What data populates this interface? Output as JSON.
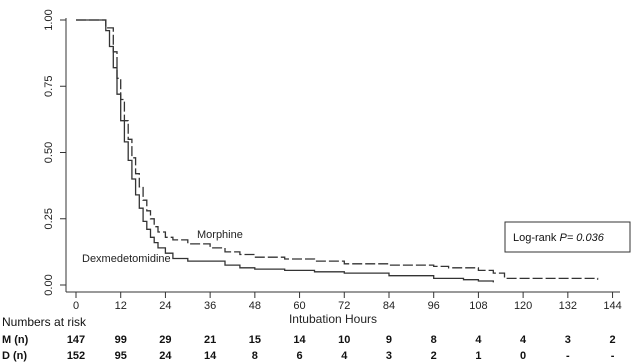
{
  "chart_data": {
    "type": "line",
    "xlabel": "Intubation Hours",
    "ylabel": "",
    "xlim": [
      0,
      146
    ],
    "ylim": [
      0,
      1
    ],
    "x_ticks": [
      "0",
      "12",
      "24",
      "36",
      "48",
      "60",
      "72",
      "84",
      "96",
      "108",
      "120",
      "132",
      "144"
    ],
    "y_ticks": [
      "0.00",
      "0.25",
      "0.50",
      "0.75",
      "1.00"
    ],
    "series": [
      {
        "name": "Morphine",
        "style": "dashed",
        "color": "#333333",
        "points": [
          [
            0,
            1.0
          ],
          [
            6,
            1.0
          ],
          [
            8,
            0.97
          ],
          [
            10,
            0.88
          ],
          [
            11,
            0.78
          ],
          [
            12,
            0.7
          ],
          [
            13,
            0.62
          ],
          [
            14,
            0.55
          ],
          [
            15,
            0.48
          ],
          [
            16,
            0.42
          ],
          [
            17,
            0.37
          ],
          [
            18,
            0.32
          ],
          [
            19,
            0.28
          ],
          [
            20,
            0.25
          ],
          [
            21,
            0.22
          ],
          [
            22,
            0.2
          ],
          [
            24,
            0.18
          ],
          [
            26,
            0.17
          ],
          [
            30,
            0.155
          ],
          [
            36,
            0.14
          ],
          [
            40,
            0.125
          ],
          [
            44,
            0.115
          ],
          [
            48,
            0.105
          ],
          [
            56,
            0.098
          ],
          [
            64,
            0.09
          ],
          [
            72,
            0.08
          ],
          [
            84,
            0.075
          ],
          [
            96,
            0.07
          ],
          [
            100,
            0.065
          ],
          [
            108,
            0.055
          ],
          [
            112,
            0.045
          ],
          [
            115,
            0.025
          ],
          [
            140,
            0.02
          ]
        ]
      },
      {
        "name": "Dexmedetomidine",
        "style": "solid",
        "color": "#333333",
        "points": [
          [
            0,
            1.0
          ],
          [
            6,
            1.0
          ],
          [
            8,
            0.96
          ],
          [
            9,
            0.9
          ],
          [
            10,
            0.82
          ],
          [
            11,
            0.72
          ],
          [
            12,
            0.62
          ],
          [
            13,
            0.54
          ],
          [
            14,
            0.47
          ],
          [
            15,
            0.4
          ],
          [
            16,
            0.34
          ],
          [
            17,
            0.29
          ],
          [
            18,
            0.24
          ],
          [
            19,
            0.21
          ],
          [
            20,
            0.18
          ],
          [
            21,
            0.16
          ],
          [
            22,
            0.14
          ],
          [
            24,
            0.12
          ],
          [
            26,
            0.1
          ],
          [
            30,
            0.09
          ],
          [
            36,
            0.09
          ],
          [
            40,
            0.075
          ],
          [
            44,
            0.065
          ],
          [
            48,
            0.06
          ],
          [
            56,
            0.055
          ],
          [
            64,
            0.05
          ],
          [
            72,
            0.045
          ],
          [
            84,
            0.035
          ],
          [
            96,
            0.025
          ],
          [
            104,
            0.02
          ],
          [
            108,
            0.015
          ],
          [
            112,
            0.01
          ]
        ]
      }
    ],
    "annotations": {
      "morphine_label": "Morphine",
      "dex_label": "Dexmedetomidine",
      "logrank_prefix": "Log-rank ",
      "logrank_p": "P",
      "logrank_suffix": "= 0.036"
    },
    "risk_table": {
      "header": "Numbers at risk",
      "rows": [
        {
          "label": "M (n)",
          "values": [
            "147",
            "99",
            "29",
            "21",
            "15",
            "14",
            "10",
            "9",
            "8",
            "4",
            "4",
            "3",
            "2"
          ]
        },
        {
          "label": "D (n)",
          "values": [
            "152",
            "95",
            "24",
            "14",
            "8",
            "6",
            "4",
            "3",
            "2",
            "1",
            "0",
            "-",
            "-"
          ]
        }
      ]
    }
  }
}
